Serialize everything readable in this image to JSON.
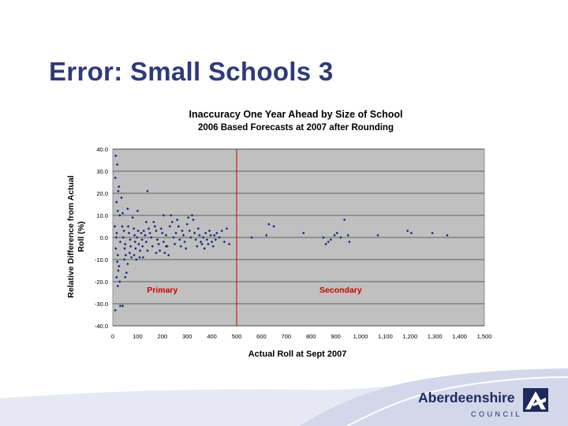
{
  "slide": {
    "title": "Error: Small Schools 3"
  },
  "logo": {
    "name": "Aberdeenshire",
    "sub": "COUNCIL"
  },
  "colors": {
    "title": "#2f3a77",
    "plot_bg": "#c0c0c0",
    "points": "#1a237e",
    "divider": "#cc0000",
    "region_label": "#cc0000",
    "logo_text": "#1f2a5c"
  },
  "chart_data": {
    "type": "scatter",
    "title": "Inaccuracy One Year Ahead by Size of School",
    "subtitle": "2006 Based Forecasts at 2007 after Rounding",
    "xlabel": "Actual Roll at Sept 2007",
    "ylabel": "Relative Difference from Actual Roll (%)",
    "xlim": [
      0,
      1500
    ],
    "ylim": [
      -40,
      40
    ],
    "xticks": [
      0,
      100,
      200,
      300,
      400,
      500,
      600,
      700,
      800,
      900,
      1000,
      1100,
      1200,
      1300,
      1400,
      1500
    ],
    "xtick_labels": [
      "0",
      "100",
      "200",
      "300",
      "400",
      "500",
      "600",
      "700",
      "800",
      "900",
      "1,000",
      "1,100",
      "1,200",
      "1,300",
      "1,400",
      "1,500"
    ],
    "yticks": [
      -40,
      -30,
      -20,
      -10,
      0,
      10,
      20,
      30,
      40
    ],
    "ytick_labels": [
      "-40.0",
      "-30.0",
      "-20.0",
      "-10.0",
      "0.0",
      "10.0",
      "20.0",
      "30.0",
      "40.0"
    ],
    "gridlines_y": [
      -40,
      -30,
      -20,
      -10,
      0,
      10,
      20,
      30,
      40
    ],
    "divider_x": 500,
    "regions": [
      {
        "label": "Primary",
        "x": 200,
        "y": -25
      },
      {
        "label": "Secondary",
        "x": 920,
        "y": -25
      }
    ],
    "series": [
      {
        "points": [
          [
            12,
            37
          ],
          [
            18,
            33
          ],
          [
            10,
            27
          ],
          [
            25,
            23
          ],
          [
            22,
            21
          ],
          [
            15,
            16
          ],
          [
            20,
            12
          ],
          [
            28,
            10
          ],
          [
            8,
            5
          ],
          [
            16,
            2
          ],
          [
            14,
            0
          ],
          [
            30,
            -2
          ],
          [
            12,
            -5
          ],
          [
            20,
            -8
          ],
          [
            18,
            -11
          ],
          [
            25,
            -13
          ],
          [
            22,
            -15
          ],
          [
            15,
            -18
          ],
          [
            28,
            -20
          ],
          [
            20,
            -22
          ],
          [
            10,
            -33
          ],
          [
            30,
            -31
          ],
          [
            40,
            -31
          ],
          [
            35,
            18
          ],
          [
            40,
            11
          ],
          [
            38,
            5
          ],
          [
            45,
            3
          ],
          [
            42,
            0
          ],
          [
            50,
            -3
          ],
          [
            48,
            -5
          ],
          [
            52,
            -8
          ],
          [
            46,
            -10
          ],
          [
            55,
            -16
          ],
          [
            50,
            -18
          ],
          [
            60,
            13
          ],
          [
            62,
            5
          ],
          [
            65,
            2
          ],
          [
            70,
            -1
          ],
          [
            72,
            -4
          ],
          [
            68,
            -7
          ],
          [
            75,
            -9
          ],
          [
            60,
            -12
          ],
          [
            80,
            9
          ],
          [
            85,
            4
          ],
          [
            88,
            1
          ],
          [
            90,
            -2
          ],
          [
            92,
            -5
          ],
          [
            86,
            -8
          ],
          [
            95,
            -10
          ],
          [
            100,
            12
          ],
          [
            102,
            3
          ],
          [
            98,
            0
          ],
          [
            105,
            -3
          ],
          [
            110,
            -6
          ],
          [
            108,
            -9
          ],
          [
            115,
            2
          ],
          [
            118,
            -1
          ],
          [
            120,
            -4
          ],
          [
            122,
            -9
          ],
          [
            125,
            3
          ],
          [
            130,
            1
          ],
          [
            135,
            -2
          ],
          [
            140,
            -6
          ],
          [
            145,
            4
          ],
          [
            150,
            2
          ],
          [
            155,
            0
          ],
          [
            160,
            -4
          ],
          [
            165,
            7
          ],
          [
            170,
            5
          ],
          [
            175,
            3
          ],
          [
            180,
            -1
          ],
          [
            185,
            -3
          ],
          [
            190,
            -6
          ],
          [
            195,
            4
          ],
          [
            200,
            2
          ],
          [
            205,
            -2
          ],
          [
            210,
            -7
          ],
          [
            215,
            1
          ],
          [
            220,
            -4
          ],
          [
            225,
            -8
          ],
          [
            230,
            5
          ],
          [
            235,
            10
          ],
          [
            240,
            7
          ],
          [
            245,
            0
          ],
          [
            250,
            -3
          ],
          [
            255,
            2
          ],
          [
            260,
            8
          ],
          [
            265,
            5
          ],
          [
            270,
            -1
          ],
          [
            275,
            -4
          ],
          [
            280,
            3
          ],
          [
            285,
            1
          ],
          [
            290,
            -2
          ],
          [
            295,
            -5
          ],
          [
            300,
            6
          ],
          [
            305,
            9
          ],
          [
            310,
            3
          ],
          [
            315,
            0
          ],
          [
            320,
            10
          ],
          [
            325,
            8
          ],
          [
            330,
            2
          ],
          [
            335,
            -1
          ],
          [
            340,
            -4
          ],
          [
            345,
            4
          ],
          [
            350,
            1
          ],
          [
            355,
            -2
          ],
          [
            360,
            -3
          ],
          [
            365,
            0
          ],
          [
            370,
            -5
          ],
          [
            375,
            2
          ],
          [
            380,
            -1
          ],
          [
            385,
            -3
          ],
          [
            390,
            3
          ],
          [
            395,
            1
          ],
          [
            400,
            -2
          ],
          [
            405,
            -4
          ],
          [
            410,
            1
          ],
          [
            415,
            -1
          ],
          [
            420,
            2
          ],
          [
            430,
            0
          ],
          [
            440,
            3
          ],
          [
            450,
            -2
          ],
          [
            460,
            4
          ],
          [
            470,
            -3
          ],
          [
            140,
            21
          ],
          [
            135,
            7
          ],
          [
            175,
            -7
          ],
          [
            205,
            10
          ],
          [
            215,
            -4
          ],
          [
            560,
            0
          ],
          [
            620,
            1
          ],
          [
            630,
            6
          ],
          [
            650,
            5
          ],
          [
            770,
            2
          ],
          [
            850,
            0
          ],
          [
            860,
            -3
          ],
          [
            870,
            -2
          ],
          [
            880,
            -1
          ],
          [
            895,
            1
          ],
          [
            905,
            2
          ],
          [
            920,
            0
          ],
          [
            935,
            8
          ],
          [
            950,
            1
          ],
          [
            955,
            -2
          ],
          [
            1070,
            1
          ],
          [
            1190,
            3
          ],
          [
            1205,
            2
          ],
          [
            1290,
            2
          ],
          [
            1350,
            1
          ]
        ]
      }
    ]
  }
}
